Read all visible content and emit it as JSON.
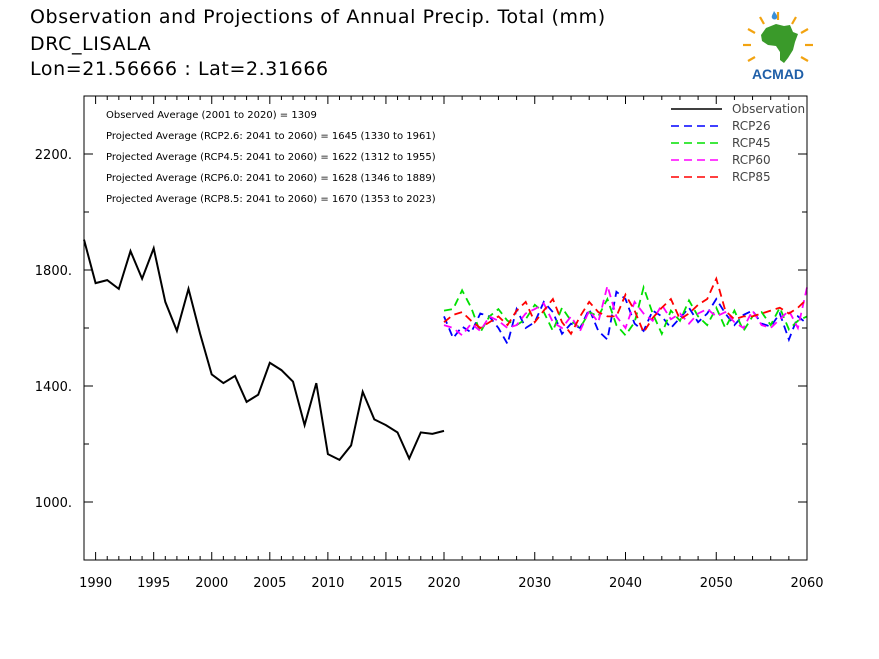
{
  "header": {
    "title": "Observation and Projections of Annual Precip. Total (mm)",
    "station": "DRC_LISALA",
    "coords": "Lon=21.56666 : Lat=2.31666"
  },
  "logo": {
    "name": "ACMAD",
    "icon": "africa-map-logo"
  },
  "chart_data": {
    "type": "line",
    "title": "Observation and Projections of Annual Precip. Total (mm)",
    "xlim": [
      1989,
      2060
    ],
    "ylim": [
      800,
      2400
    ],
    "x_ticks": [
      1990,
      1995,
      2000,
      2005,
      2010,
      2015,
      2020,
      2030,
      2040,
      2050,
      2060
    ],
    "y_ticks": [
      1000,
      1400,
      1800,
      2200
    ],
    "y_tick_labels": [
      "1000.",
      "1400.",
      "1800.",
      "2200."
    ],
    "legend_position": "top-right",
    "annotations": [
      "Observed Average (2001 to 2020) = 1309",
      "Projected Average (RCP2.6: 2041 to 2060) = 1645 (1330 to 1961)",
      "Projected Average (RCP4.5: 2041 to 2060) = 1622 (1312 to 1955)",
      "Projected Average (RCP6.0: 2041 to 2060) = 1628 (1346 to 1889)",
      "Projected Average (RCP8.5: 2041 to 2060) = 1670 (1353 to 2023)"
    ],
    "series": [
      {
        "name": "Observation",
        "color": "#000000",
        "dash": "solid",
        "x": [
          1989,
          1990,
          1991,
          1992,
          1993,
          1994,
          1995,
          1996,
          1997,
          1998,
          1999,
          2000,
          2001,
          2002,
          2003,
          2004,
          2005,
          2006,
          2007,
          2008,
          2009,
          2010,
          2011,
          2012,
          2013,
          2014,
          2015,
          2016,
          2017,
          2018,
          2019,
          2020
        ],
        "y": [
          1905,
          1755,
          1765,
          1735,
          1865,
          1770,
          1875,
          1690,
          1590,
          1735,
          1580,
          1440,
          1410,
          1435,
          1345,
          1370,
          1480,
          1455,
          1415,
          1265,
          1410,
          1165,
          1145,
          1195,
          1380,
          1285,
          1265,
          1240,
          1150,
          1240,
          1235,
          1245
        ]
      },
      {
        "name": "RCP26",
        "color": "#0000ff",
        "dash": "8,5",
        "x": [
          2020,
          2021,
          2022,
          2023,
          2024,
          2025,
          2026,
          2027,
          2028,
          2029,
          2030,
          2031,
          2032,
          2033,
          2034,
          2035,
          2036,
          2037,
          2038,
          2039,
          2040,
          2041,
          2042,
          2043,
          2044,
          2045,
          2046,
          2047,
          2048,
          2049,
          2050,
          2051,
          2052,
          2053,
          2054,
          2055,
          2056,
          2057,
          2058,
          2059,
          2060
        ],
        "y": [
          1640,
          1565,
          1605,
          1585,
          1650,
          1640,
          1600,
          1545,
          1665,
          1600,
          1620,
          1690,
          1655,
          1580,
          1615,
          1600,
          1665,
          1590,
          1560,
          1725,
          1700,
          1615,
          1590,
          1660,
          1640,
          1600,
          1635,
          1670,
          1620,
          1650,
          1700,
          1650,
          1610,
          1645,
          1660,
          1615,
          1605,
          1650,
          1560,
          1640,
          1615
        ]
      },
      {
        "name": "RCP45",
        "color": "#00e000",
        "dash": "8,5",
        "x": [
          2020,
          2021,
          2022,
          2023,
          2024,
          2025,
          2026,
          2027,
          2028,
          2029,
          2030,
          2031,
          2032,
          2033,
          2034,
          2035,
          2036,
          2037,
          2038,
          2039,
          2040,
          2041,
          2042,
          2043,
          2044,
          2045,
          2046,
          2047,
          2048,
          2049,
          2050,
          2051,
          2052,
          2053,
          2054,
          2055,
          2056,
          2057,
          2058,
          2059,
          2060
        ],
        "y": [
          1660,
          1665,
          1730,
          1670,
          1585,
          1640,
          1665,
          1625,
          1610,
          1630,
          1680,
          1655,
          1590,
          1670,
          1625,
          1600,
          1655,
          1640,
          1700,
          1610,
          1575,
          1620,
          1740,
          1650,
          1580,
          1660,
          1625,
          1695,
          1640,
          1610,
          1670,
          1600,
          1660,
          1590,
          1640,
          1655,
          1610,
          1670,
          1595,
          1625,
          1640
        ]
      },
      {
        "name": "RCP60",
        "color": "#ff00ff",
        "dash": "8,5",
        "x": [
          2020,
          2021,
          2022,
          2023,
          2024,
          2025,
          2026,
          2027,
          2028,
          2029,
          2030,
          2031,
          2032,
          2033,
          2034,
          2035,
          2036,
          2037,
          2038,
          2039,
          2040,
          2041,
          2042,
          2043,
          2044,
          2045,
          2046,
          2047,
          2048,
          2049,
          2050,
          2051,
          2052,
          2053,
          2054,
          2055,
          2056,
          2057,
          2058,
          2059,
          2060
        ],
        "y": [
          1610,
          1600,
          1575,
          1615,
          1590,
          1640,
          1625,
          1600,
          1610,
          1650,
          1665,
          1685,
          1620,
          1600,
          1640,
          1590,
          1660,
          1620,
          1745,
          1640,
          1600,
          1690,
          1650,
          1625,
          1680,
          1630,
          1650,
          1615,
          1650,
          1665,
          1640,
          1655,
          1620,
          1600,
          1660,
          1610,
          1600,
          1630,
          1660,
          1600,
          1740
        ]
      },
      {
        "name": "RCP85",
        "color": "#ff0000",
        "dash": "8,5",
        "x": [
          2020,
          2021,
          2022,
          2023,
          2024,
          2025,
          2026,
          2027,
          2028,
          2029,
          2030,
          2031,
          2032,
          2033,
          2034,
          2035,
          2036,
          2037,
          2038,
          2039,
          2040,
          2041,
          2042,
          2043,
          2044,
          2045,
          2046,
          2047,
          2048,
          2049,
          2050,
          2051,
          2052,
          2053,
          2054,
          2055,
          2056,
          2057,
          2058,
          2059,
          2060
        ],
        "y": [
          1620,
          1645,
          1655,
          1625,
          1600,
          1620,
          1640,
          1610,
          1660,
          1690,
          1620,
          1660,
          1700,
          1620,
          1580,
          1640,
          1690,
          1655,
          1640,
          1640,
          1715,
          1660,
          1585,
          1635,
          1670,
          1700,
          1630,
          1650,
          1680,
          1700,
          1770,
          1660,
          1630,
          1640,
          1640,
          1650,
          1660,
          1670,
          1650,
          1670,
          1700
        ]
      }
    ]
  }
}
